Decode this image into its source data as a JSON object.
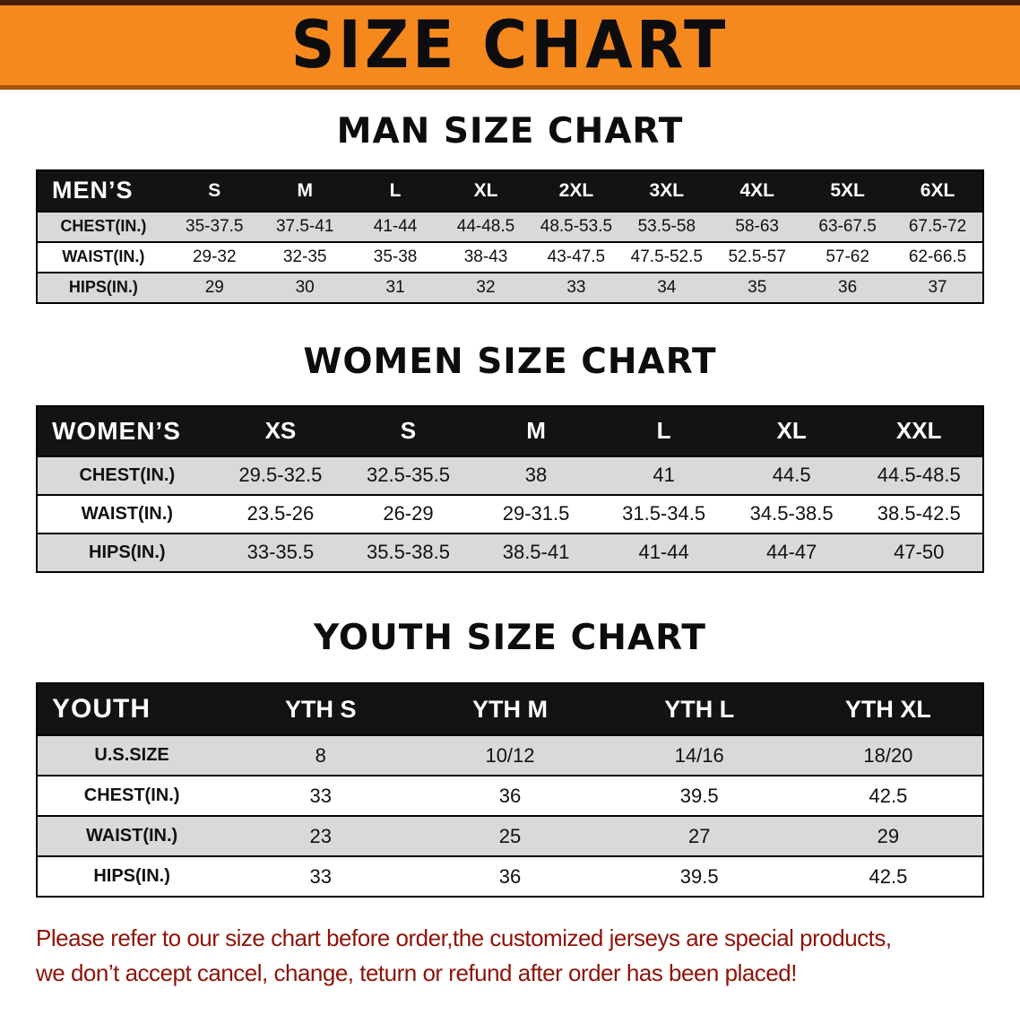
{
  "banner": {
    "title": "SIZE CHART"
  },
  "sections": [
    {
      "heading": "MAN SIZE CHART",
      "table": {
        "header_label": "MEN’S",
        "columns": [
          "S",
          "M",
          "L",
          "XL",
          "2XL",
          "3XL",
          "4XL",
          "5XL",
          "6XL"
        ],
        "rows": [
          {
            "label": "CHEST(IN.)",
            "values": [
              "35-37.5",
              "37.5-41",
              "41-44",
              "44-48.5",
              "48.5-53.5",
              "53.5-58",
              "58-63",
              "63-67.5",
              "67.5-72"
            ]
          },
          {
            "label": "WAIST(IN.)",
            "values": [
              "29-32",
              "32-35",
              "35-38",
              "38-43",
              "43-47.5",
              "47.5-52.5",
              "52.5-57",
              "57-62",
              "62-66.5"
            ]
          },
          {
            "label": "HIPS(IN.)",
            "values": [
              "29",
              "30",
              "31",
              "32",
              "33",
              "34",
              "35",
              "36",
              "37"
            ]
          }
        ]
      }
    },
    {
      "heading": "WOMEN SIZE CHART",
      "table": {
        "header_label": "WOMEN’S",
        "columns": [
          "XS",
          "S",
          "M",
          "L",
          "XL",
          "XXL"
        ],
        "rows": [
          {
            "label": "CHEST(IN.)",
            "values": [
              "29.5-32.5",
              "32.5-35.5",
              "38",
              "41",
              "44.5",
              "44.5-48.5"
            ]
          },
          {
            "label": "WAIST(IN.)",
            "values": [
              "23.5-26",
              "26-29",
              "29-31.5",
              "31.5-34.5",
              "34.5-38.5",
              "38.5-42.5"
            ]
          },
          {
            "label": "HIPS(IN.)",
            "values": [
              "33-35.5",
              "35.5-38.5",
              "38.5-41",
              "41-44",
              "44-47",
              "47-50"
            ]
          }
        ]
      }
    },
    {
      "heading": "YOUTH SIZE CHART",
      "table": {
        "header_label": "YOUTH",
        "columns": [
          "YTH S",
          "YTH M",
          "YTH L",
          "YTH XL"
        ],
        "rows": [
          {
            "label": "U.S.SIZE",
            "values": [
              "8",
              "10/12",
              "14/16",
              "18/20"
            ]
          },
          {
            "label": "CHEST(IN.)",
            "values": [
              "33",
              "36",
              "39.5",
              "42.5"
            ]
          },
          {
            "label": "WAIST(IN.)",
            "values": [
              "23",
              "25",
              "27",
              "29"
            ]
          },
          {
            "label": "HIPS(IN.)",
            "values": [
              "33",
              "36",
              "39.5",
              "42.5"
            ]
          }
        ]
      }
    }
  ],
  "footer": {
    "line1": "Please refer to our size chart before order,the customized jerseys are special products,",
    "line2": "we don’t accept cancel, change, teturn or refund after order has been placed!"
  },
  "colors": {
    "banner_orange": "#F6891E",
    "header_black": "#131313",
    "row_gray": "#D9D9D9",
    "note_red": "#8E1309"
  }
}
